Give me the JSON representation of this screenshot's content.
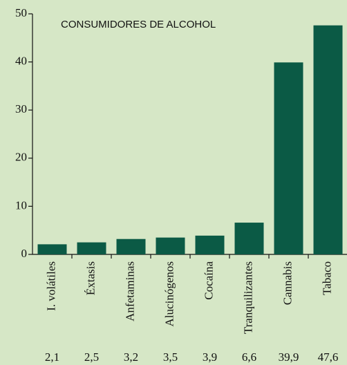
{
  "chart_data": {
    "type": "bar",
    "title": "CONSUMIDORES DE ALCOHOL",
    "categories": [
      "I. volátiles",
      "Éxtasis",
      "Anfetaminas",
      "Alucinógenos",
      "Cocaína",
      "Tranquilizantes",
      "Cannabis",
      "Tabaco"
    ],
    "values": [
      2.1,
      2.5,
      3.2,
      3.5,
      3.9,
      6.6,
      39.9,
      47.6
    ],
    "value_labels": [
      "2,1",
      "2,5",
      "3,2",
      "3,5",
      "3,9",
      "6,6",
      "39,9",
      "47,6"
    ],
    "color": "#0b5a45",
    "ylim": [
      0,
      50
    ],
    "yticks": [
      0,
      10,
      20,
      30,
      40,
      50
    ]
  }
}
